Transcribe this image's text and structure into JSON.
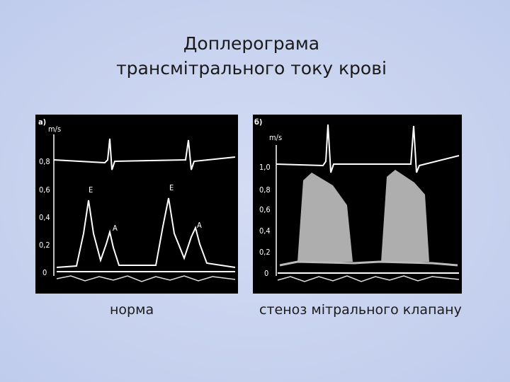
{
  "title": [
    "Доплерограма",
    "трансмітрального току крові"
  ],
  "panels": [
    {
      "label": "а)",
      "unit": "m/s",
      "ticks": [
        "0,8",
        "0,6",
        "0,4",
        "0,2",
        "0"
      ],
      "peaks": [
        "E",
        "E",
        "A",
        "A"
      ],
      "caption": "норма"
    },
    {
      "label": "б)",
      "unit": "m/s",
      "ticks": [
        "1,0",
        "0,8",
        "0,6",
        "0,4",
        "0,2",
        "0"
      ],
      "caption": "стеноз мітрального клапану"
    }
  ]
}
